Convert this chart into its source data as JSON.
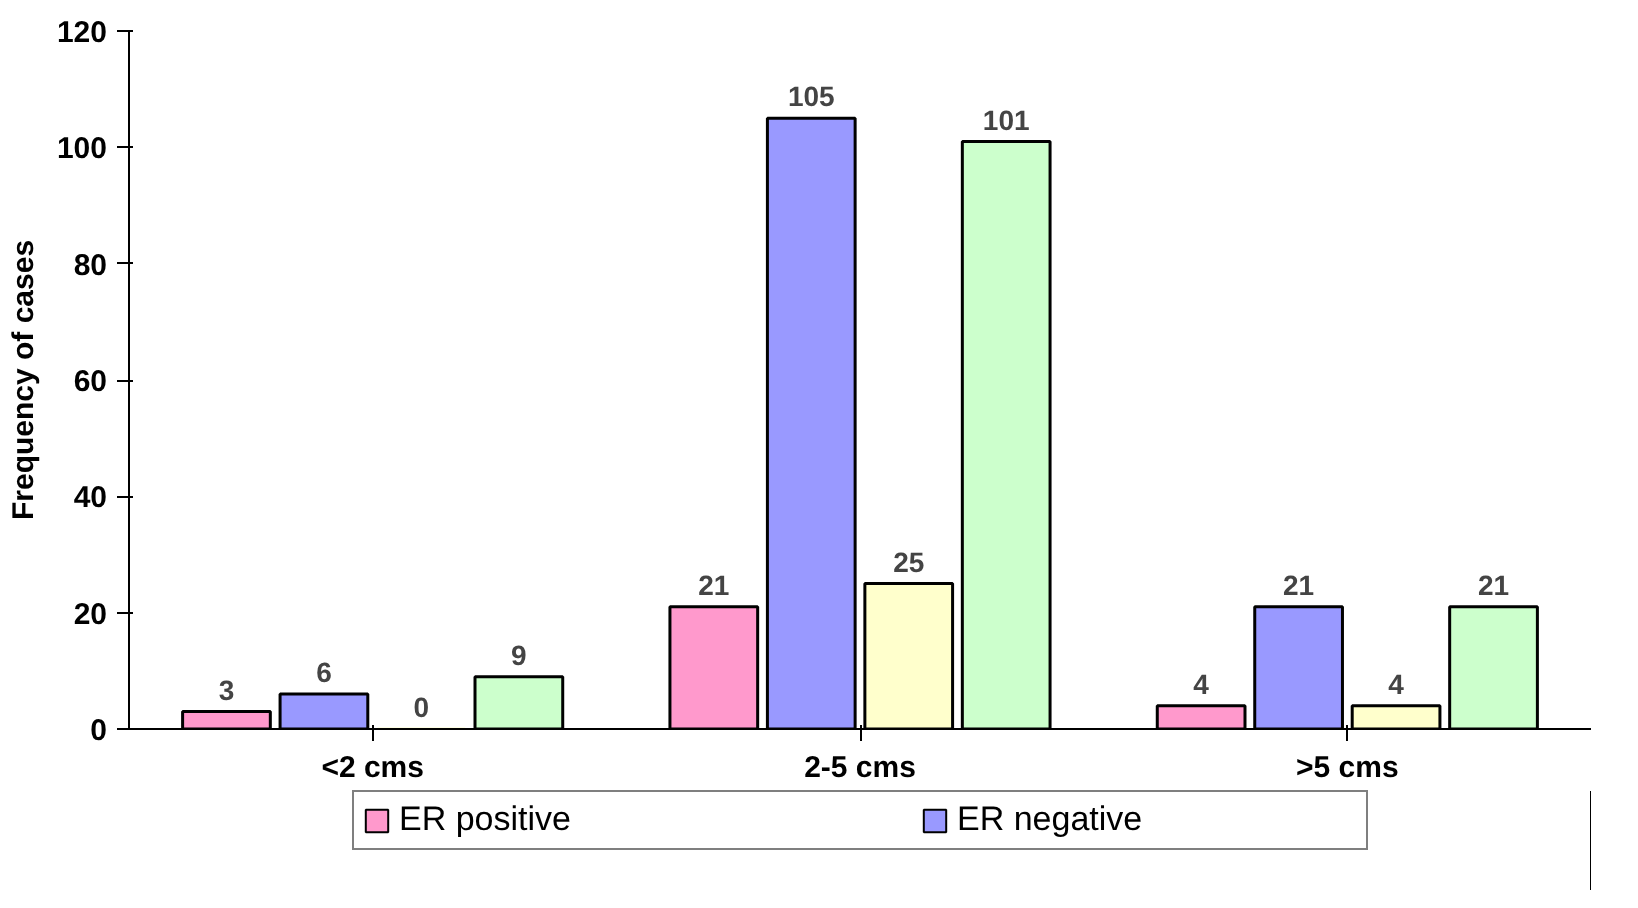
{
  "chart_data": {
    "type": "bar",
    "ylabel": "Frequency of cases",
    "categories": [
      "<2 cms",
      "2-5 cms",
      ">5 cms"
    ],
    "series": [
      {
        "name": "ER positive",
        "color": "#ff99cc",
        "values": [
          3,
          21,
          4
        ]
      },
      {
        "name": "ER negative",
        "color": "#9999ff",
        "values": [
          6,
          105,
          21
        ]
      },
      {
        "color": "#ffffcc",
        "values": [
          0,
          25,
          4
        ]
      },
      {
        "color": "#ccffcc",
        "values": [
          9,
          101,
          21
        ]
      }
    ],
    "ylim": [
      0,
      120
    ],
    "yticks": [
      0,
      20,
      40,
      60,
      80,
      100,
      120
    ],
    "grid": false,
    "legend": "bottom",
    "data_labels": true
  }
}
